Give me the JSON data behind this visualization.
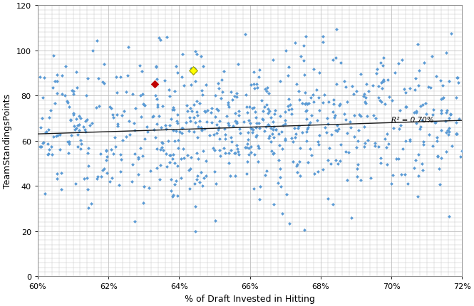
{
  "title": "",
  "xlabel": "% of Draft Invested in Hitting",
  "ylabel": "TeamStandingsPoints",
  "xlim": [
    0.6,
    0.72
  ],
  "ylim": [
    0,
    120
  ],
  "yticks": [
    0,
    20,
    40,
    60,
    80,
    100,
    120
  ],
  "xticks": [
    0.6,
    0.62,
    0.64,
    0.66,
    0.68,
    0.7,
    0.72
  ],
  "trendline_label": "R² = 0.70%",
  "scatter_color": "#5B9BD5",
  "scatter_marker": "D",
  "scatter_size": 6,
  "red_point": [
    0.633,
    85
  ],
  "yellow_point": [
    0.644,
    91
  ],
  "trendline_color": "#1a1a1a",
  "background_color": "#ffffff",
  "grid_color": "#c0c0c0",
  "seed": 42,
  "n_points": 550,
  "trend_x0": 0.6,
  "trend_y0": 63.0,
  "trend_x1": 0.72,
  "trend_y1": 69.0
}
